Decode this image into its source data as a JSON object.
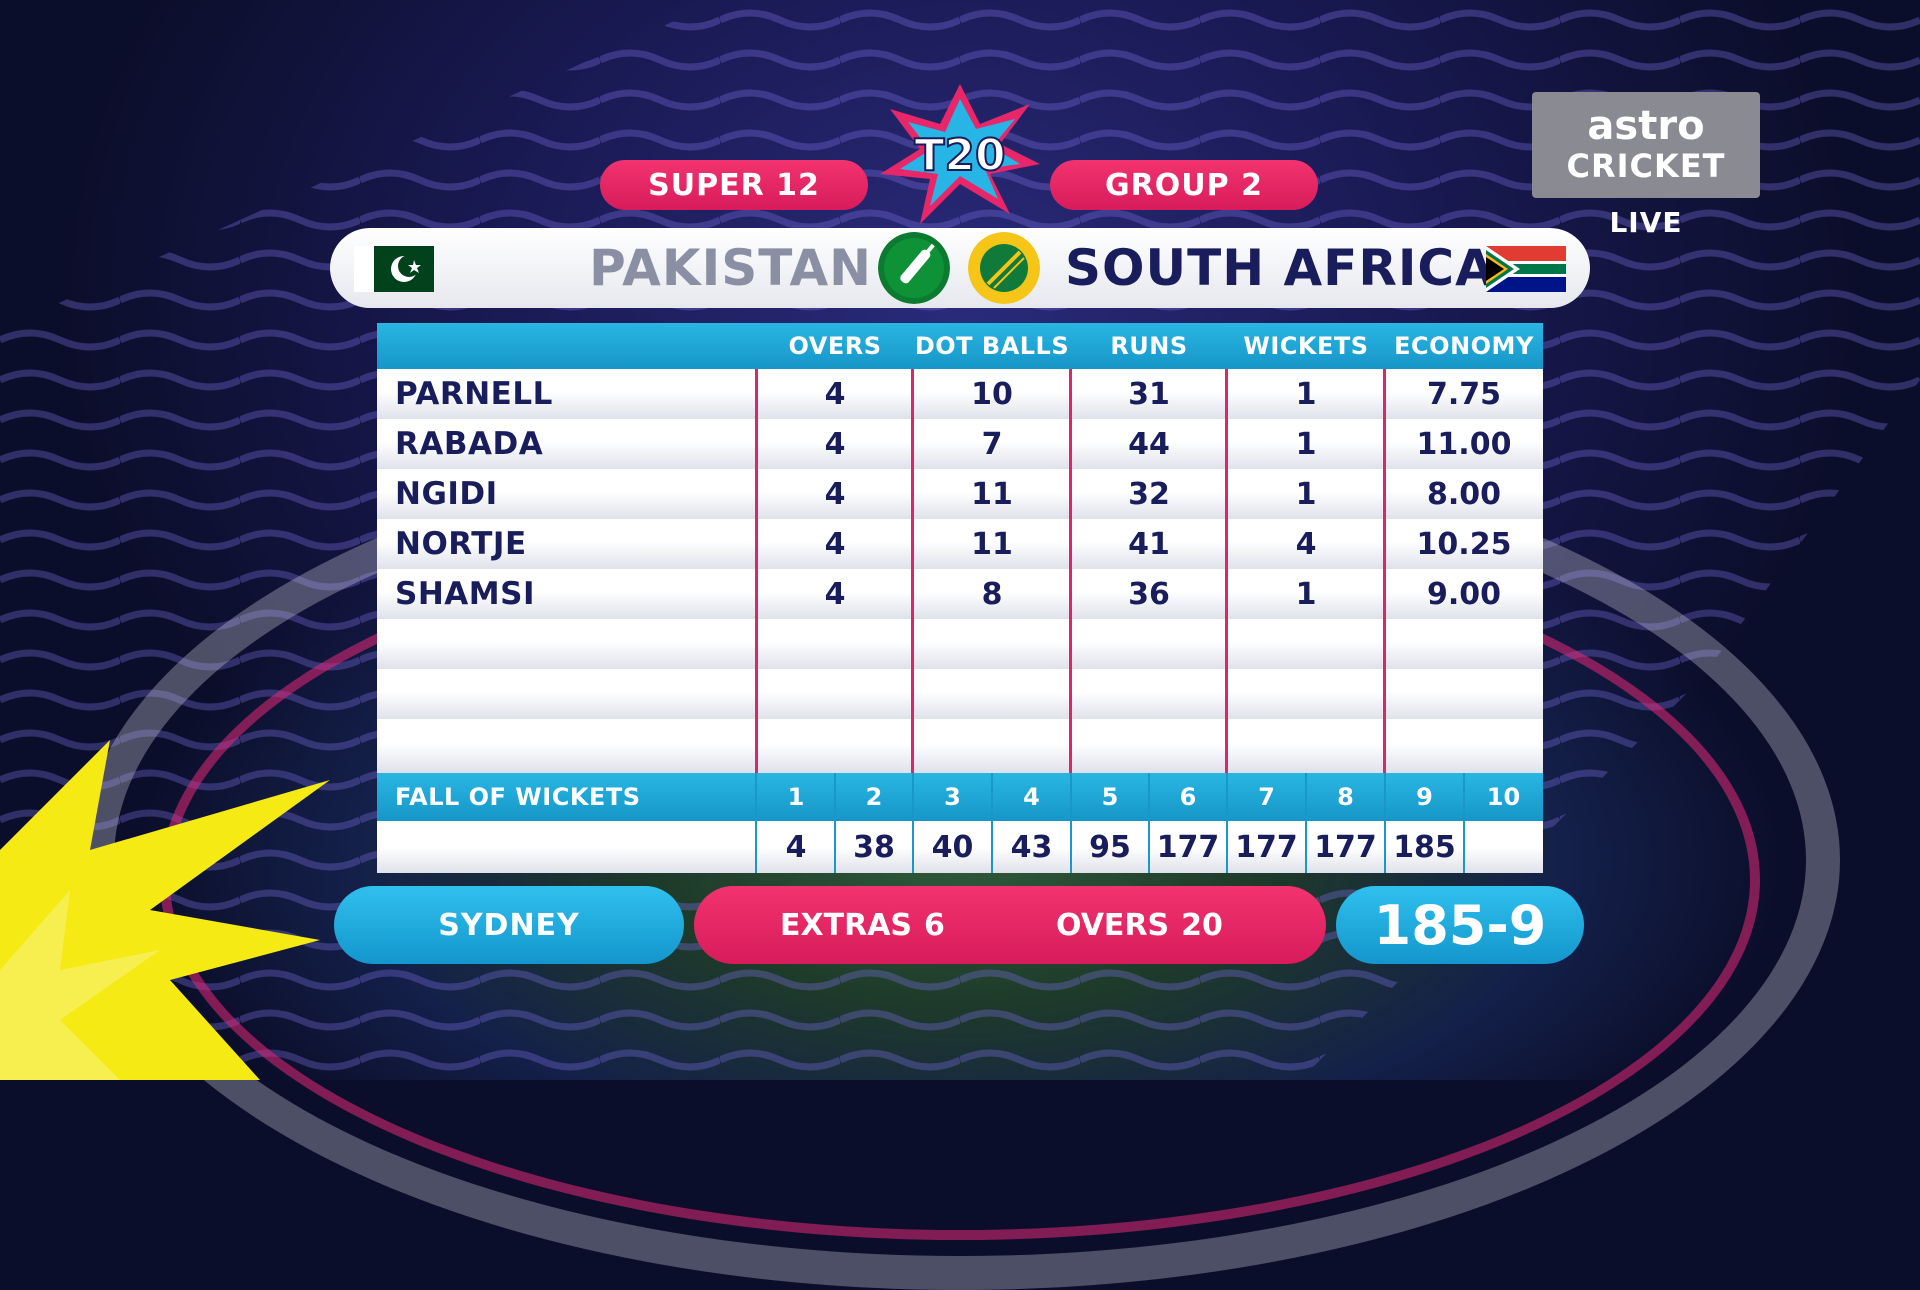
{
  "header": {
    "stage": "SUPER 12",
    "group": "GROUP 2",
    "logo_text": "T20"
  },
  "broadcaster": {
    "line1": "astro",
    "line2": "CRICKET",
    "live": "LIVE"
  },
  "teams": {
    "batting": {
      "name": "PAKISTAN",
      "flag": "pakistan-flag-icon",
      "status_icon": "bat-icon"
    },
    "bowling": {
      "name": "SOUTH AFRICA",
      "flag": "south-africa-flag-icon",
      "status_icon": "ball-icon"
    }
  },
  "table": {
    "columns": [
      "OVERS",
      "DOT BALLS",
      "RUNS",
      "WICKETS",
      "ECONOMY"
    ],
    "rows": [
      {
        "name": "PARNELL",
        "overs": "4",
        "dots": "10",
        "runs": "31",
        "wickets": "1",
        "economy": "7.75"
      },
      {
        "name": "RABADA",
        "overs": "4",
        "dots": "7",
        "runs": "44",
        "wickets": "1",
        "economy": "11.00"
      },
      {
        "name": "NGIDI",
        "overs": "4",
        "dots": "11",
        "runs": "32",
        "wickets": "1",
        "economy": "8.00"
      },
      {
        "name": "NORTJE",
        "overs": "4",
        "dots": "11",
        "runs": "41",
        "wickets": "4",
        "economy": "10.25"
      },
      {
        "name": "SHAMSI",
        "overs": "4",
        "dots": "8",
        "runs": "36",
        "wickets": "1",
        "economy": "9.00"
      }
    ]
  },
  "fall_of_wickets": {
    "label": "FALL OF WICKETS",
    "numbers": [
      "1",
      "2",
      "3",
      "4",
      "5",
      "6",
      "7",
      "8",
      "9",
      "10"
    ],
    "values": [
      "4",
      "38",
      "40",
      "43",
      "95",
      "177",
      "177",
      "177",
      "185",
      ""
    ]
  },
  "footer": {
    "venue": "SYDNEY",
    "extras_label": "EXTRAS",
    "extras_value": "6",
    "overs_label": "OVERS",
    "overs_value": "20",
    "score": "185-9"
  },
  "colors": {
    "pink": "#e8266a",
    "cyan": "#1fa9dc",
    "navy": "#1a1d5c"
  }
}
